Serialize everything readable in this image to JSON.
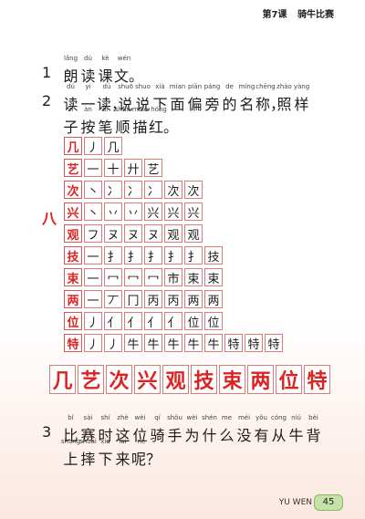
{
  "header": {
    "lesson": "第7课",
    "title": "骑牛比赛"
  },
  "ex1": {
    "num": "1",
    "items": [
      {
        "py": "lǎng",
        "ch": "朗"
      },
      {
        "py": "dú",
        "ch": "读"
      },
      {
        "py": "kè",
        "ch": "课"
      },
      {
        "py": "wén",
        "ch": "文。"
      }
    ]
  },
  "ex2": {
    "num": "2",
    "line1": [
      {
        "py": "dú",
        "ch": "读"
      },
      {
        "py": "yi",
        "ch": "一"
      },
      {
        "py": "dú",
        "ch": "读，"
      },
      {
        "py": "shuō",
        "ch": "说"
      },
      {
        "py": "shuo",
        "ch": "说"
      },
      {
        "py": "xià",
        "ch": "下"
      },
      {
        "py": "mian",
        "ch": "面"
      },
      {
        "py": "piān",
        "ch": "偏"
      },
      {
        "py": "páng",
        "ch": "旁"
      },
      {
        "py": "de",
        "ch": "的"
      },
      {
        "py": "míng",
        "ch": "名"
      },
      {
        "py": "chēng",
        "ch": "称，"
      },
      {
        "py": "zhào",
        "ch": "照"
      },
      {
        "py": "yàng",
        "ch": "样"
      }
    ],
    "line2": [
      {
        "py": "zi",
        "ch": "子"
      },
      {
        "py": "àn",
        "ch": "按"
      },
      {
        "py": "bǐ",
        "ch": "笔"
      },
      {
        "py": "shùn",
        "ch": "顺"
      },
      {
        "py": "miáo",
        "ch": "描"
      },
      {
        "py": "hóng",
        "ch": "红。"
      }
    ]
  },
  "side_number": "八",
  "stroke_rows": [
    [
      "几",
      "丿",
      "几"
    ],
    [
      "艺",
      "一",
      "十",
      "廾",
      "艺"
    ],
    [
      "次",
      "丶",
      "冫",
      "冫",
      "冫",
      "次",
      "次"
    ],
    [
      "兴",
      "丶",
      "丷",
      "丷",
      "兴",
      "兴",
      "兴"
    ],
    [
      "观",
      "フ",
      "ヌ",
      "ヌ",
      "ヌ",
      "观",
      "观"
    ],
    [
      "技",
      "一",
      "扌",
      "扌",
      "扌",
      "扌",
      "扌",
      "技"
    ],
    [
      "束",
      "一",
      "冖",
      "冖",
      "冖",
      "市",
      "束",
      "束"
    ],
    [
      "两",
      "一",
      "丆",
      "冂",
      "丙",
      "丙",
      "两",
      "两"
    ],
    [
      "位",
      "丿",
      "亻",
      "亻",
      "亻",
      "亻",
      "位",
      "位"
    ],
    [
      "特",
      "丿",
      "丿",
      "牛",
      "牛",
      "牛",
      "牛",
      "牛",
      "特",
      "特",
      "特"
    ]
  ],
  "big_chars": [
    "几",
    "艺",
    "次",
    "兴",
    "观",
    "技",
    "束",
    "两",
    "位",
    "特"
  ],
  "ex3": {
    "num": "3",
    "line1": [
      {
        "py": "bǐ",
        "ch": "比"
      },
      {
        "py": "sài",
        "ch": "赛"
      },
      {
        "py": "shí",
        "ch": "时"
      },
      {
        "py": "zhè",
        "ch": "这"
      },
      {
        "py": "wèi",
        "ch": "位"
      },
      {
        "py": "qí",
        "ch": "骑"
      },
      {
        "py": "shǒu",
        "ch": "手"
      },
      {
        "py": "wèi",
        "ch": "为"
      },
      {
        "py": "shén",
        "ch": "什"
      },
      {
        "py": "me",
        "ch": "么"
      },
      {
        "py": "méi",
        "ch": "没"
      },
      {
        "py": "yǒu",
        "ch": "有"
      },
      {
        "py": "cóng",
        "ch": "从"
      },
      {
        "py": "niú",
        "ch": "牛"
      },
      {
        "py": "bèi",
        "ch": "背"
      }
    ],
    "line2": [
      {
        "py": "shang",
        "ch": "上"
      },
      {
        "py": "shuāi",
        "ch": "摔"
      },
      {
        "py": "xia",
        "ch": "下"
      },
      {
        "py": "lai",
        "ch": "来"
      },
      {
        "py": "ne",
        "ch": "呢？"
      }
    ]
  },
  "footer": {
    "label": "YU WEN",
    "page": "45"
  }
}
